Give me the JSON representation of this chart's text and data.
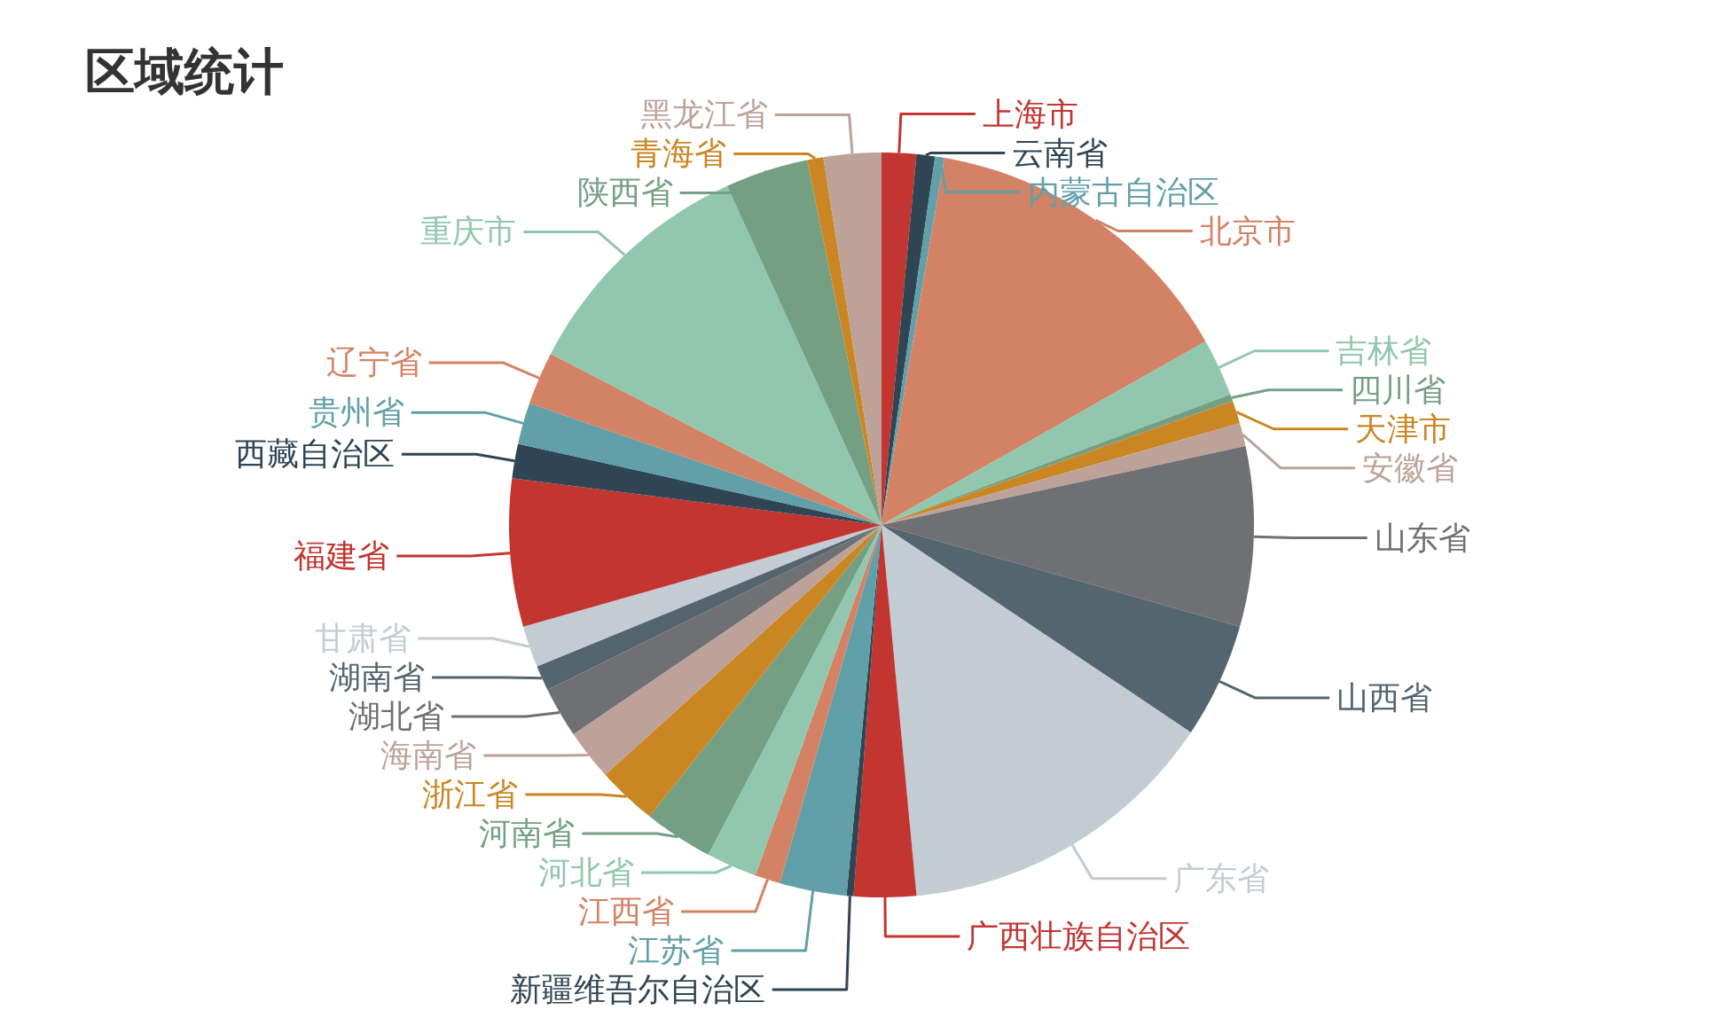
{
  "chart_data": {
    "type": "pie",
    "title": "区域统计",
    "categories": [
      "上海市",
      "云南省",
      "内蒙古自治区",
      "北京市",
      "吉林省",
      "四川省",
      "天津市",
      "安徽省",
      "山东省",
      "山西省",
      "广东省",
      "广西壮族自治区",
      "新疆维吾尔自治区",
      "江苏省",
      "江西省",
      "河北省",
      "河南省",
      "浙江省",
      "海南省",
      "湖北省",
      "湖南省",
      "甘肃省",
      "福建省",
      "西藏自治区",
      "贵州省",
      "辽宁省",
      "重庆市",
      "陕西省",
      "青海省",
      "黑龙江省"
    ],
    "values": [
      1.5,
      0.8,
      0.4,
      14.1,
      2.5,
      0.3,
      1.0,
      1.0,
      7.8,
      5.0,
      14.1,
      2.7,
      0.3,
      2.9,
      1.1,
      2.2,
      3.0,
      2.6,
      2.2,
      2.2,
      1.1,
      1.8,
      6.4,
      1.5,
      1.8,
      2.3,
      10.6,
      3.6,
      0.7,
      2.5
    ],
    "colors": [
      "#c23531",
      "#2f4554",
      "#61a0a8",
      "#d48265",
      "#91c7ae",
      "#749f83",
      "#ca8622",
      "#bda29a",
      "#6e7074",
      "#546570",
      "#c4ccd3",
      "#c23531",
      "#2f4554",
      "#61a0a8",
      "#d48265",
      "#91c7ae",
      "#749f83",
      "#ca8622",
      "#bda29a",
      "#6e7074",
      "#546570",
      "#c4ccd3",
      "#c23531",
      "#2f4554",
      "#61a0a8",
      "#d48265",
      "#91c7ae",
      "#749f83",
      "#ca8622",
      "#bda29a"
    ]
  }
}
